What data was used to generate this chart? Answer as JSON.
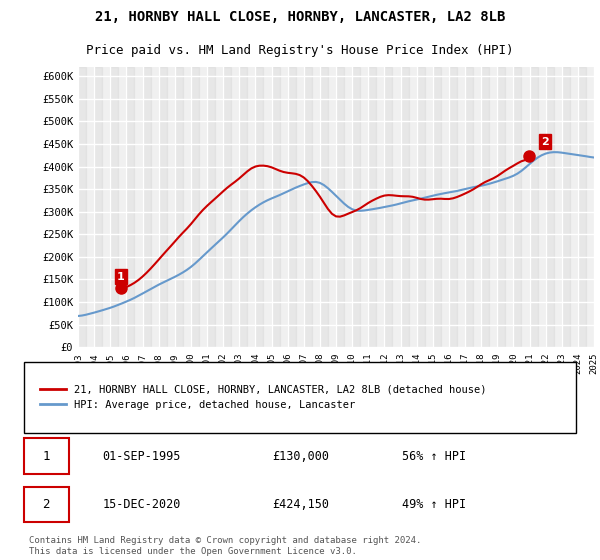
{
  "title_line1": "21, HORNBY HALL CLOSE, HORNBY, LANCASTER, LA2 8LB",
  "title_line2": "Price paid vs. HM Land Registry's House Price Index (HPI)",
  "ylim": [
    0,
    620000
  ],
  "yticks": [
    0,
    50000,
    100000,
    150000,
    200000,
    250000,
    300000,
    350000,
    400000,
    450000,
    500000,
    550000,
    600000
  ],
  "ytick_labels": [
    "£0",
    "£50K",
    "£100K",
    "£150K",
    "£200K",
    "£250K",
    "£300K",
    "£350K",
    "£400K",
    "£450K",
    "£500K",
    "£550K",
    "£600K"
  ],
  "year_start": 1993,
  "year_end": 2025,
  "background_color": "#ffffff",
  "plot_bg_color": "#f0f0f0",
  "grid_color": "#ffffff",
  "hpi_color": "#6699cc",
  "price_color": "#cc0000",
  "sale1_date": "01-SEP-1995",
  "sale1_price": 130000,
  "sale1_label": "1",
  "sale1_pct": "56% ↑ HPI",
  "sale2_date": "15-DEC-2020",
  "sale2_price": 424150,
  "sale2_label": "2",
  "sale2_pct": "49% ↑ HPI",
  "legend_line1": "21, HORNBY HALL CLOSE, HORNBY, LANCASTER, LA2 8LB (detached house)",
  "legend_line2": "HPI: Average price, detached house, Lancaster",
  "footer": "Contains HM Land Registry data © Crown copyright and database right 2024.\nThis data is licensed under the Open Government Licence v3.0."
}
